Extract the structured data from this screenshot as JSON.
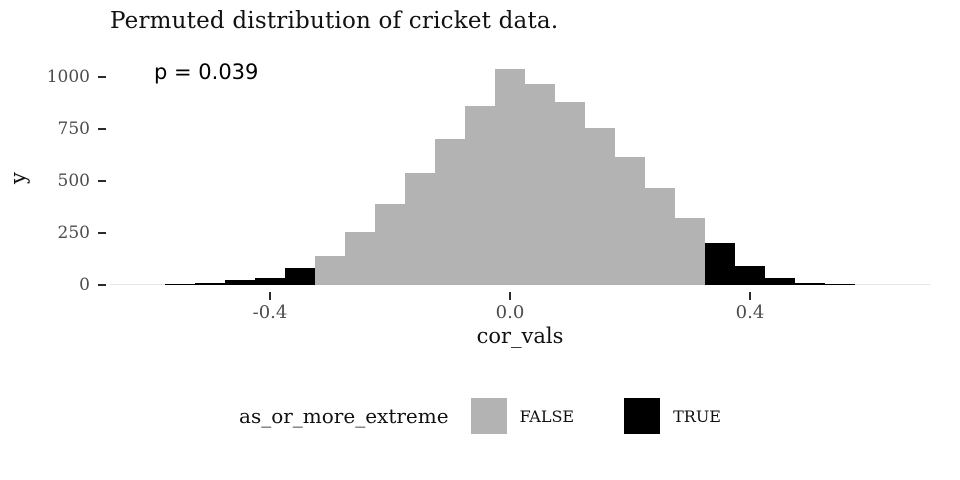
{
  "chart_data": {
    "type": "bar",
    "subtype": "histogram",
    "title": "Permuted distribution of cricket data.",
    "annotation": "p = 0.039",
    "xlabel": "cor_vals",
    "ylabel": "y",
    "ylim": [
      0,
      1080
    ],
    "xlim": [
      -0.667,
      0.7
    ],
    "bin_width": 0.05,
    "bin_centers": [
      -0.55,
      -0.5,
      -0.45,
      -0.4,
      -0.35,
      -0.3,
      -0.25,
      -0.2,
      -0.15,
      -0.1,
      -0.05,
      0.0,
      0.05,
      0.1,
      0.15,
      0.2,
      0.25,
      0.3,
      0.35,
      0.4,
      0.45,
      0.5,
      0.55
    ],
    "counts": [
      3,
      10,
      25,
      35,
      80,
      140,
      255,
      390,
      540,
      700,
      860,
      1035,
      965,
      880,
      755,
      615,
      465,
      320,
      200,
      90,
      35,
      12,
      4
    ],
    "as_or_more_extreme": [
      true,
      true,
      true,
      true,
      true,
      false,
      false,
      false,
      false,
      false,
      false,
      false,
      false,
      false,
      false,
      false,
      false,
      false,
      true,
      true,
      true,
      true,
      true
    ],
    "yticks": [
      0,
      250,
      500,
      750,
      1000
    ],
    "ytick_labels": [
      "0",
      "250",
      "500",
      "750",
      "1000"
    ],
    "xticks": [
      -0.4,
      0.0,
      0.4
    ],
    "xtick_labels": [
      "-0.4",
      "0.0",
      "0.4"
    ],
    "grid": false,
    "legend": {
      "position": "bottom",
      "title": "as_or_more_extreme",
      "entries": [
        {
          "label": "FALSE",
          "color": "#b3b3b3"
        },
        {
          "label": "TRUE",
          "color": "#000000"
        }
      ]
    },
    "colors": {
      "false_fill": "#b3b3b3",
      "true_fill": "#000000",
      "axis_text": "#4d4d4d",
      "tick_mark": "#2b2b2b",
      "background": "#ffffff"
    }
  }
}
